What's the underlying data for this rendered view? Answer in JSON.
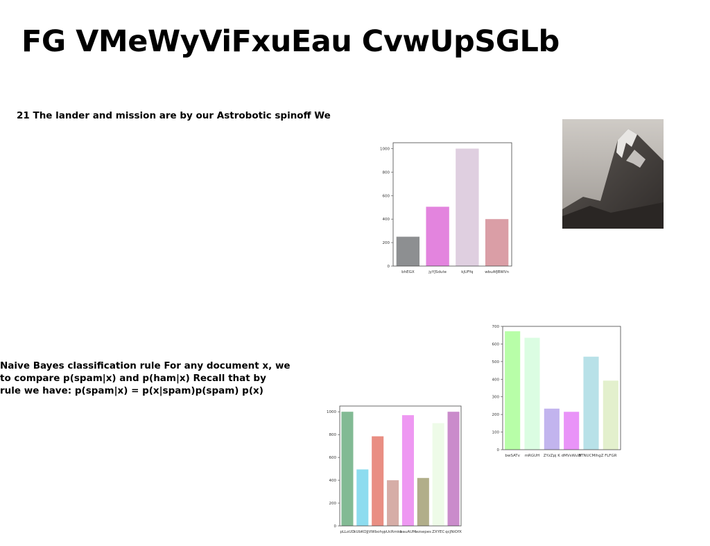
{
  "page": {
    "title": "FG VMeWyViFxuEau CvwUpSGLb",
    "paragraph_1": "21 The lander and mission are by our Astrobotic spinoff We",
    "paragraph_2_lines": [
      "Naive Bayes classification rule For any document x, we",
      "to compare p(spam|x) and p(ham|x) Recall that by",
      "rule we have: p(spam|x) = p(x|spam)p(spam) p(x)"
    ]
  },
  "chart_data": [
    {
      "type": "bar",
      "categories": [
        "bhEGX",
        "jyYJSdute",
        "kjUFfq",
        "wbuAfJBWVn"
      ],
      "values": [
        250,
        505,
        1000,
        400
      ],
      "colors": [
        "#8d8f91",
        "#e384de",
        "#dfcfe0",
        "#da9ea6"
      ],
      "ylim": [
        0,
        1050
      ],
      "yticks": [
        0,
        200,
        400,
        600,
        800,
        1000
      ],
      "title": "",
      "xlabel": "",
      "ylabel": ""
    },
    {
      "type": "bar",
      "categories": [
        "bwSATv",
        "mRGUH",
        "ZYzZpj K",
        "dMVsWuW",
        "BTNUCMlhgZ",
        "FLFGR"
      ],
      "values": [
        672,
        635,
        233,
        215,
        528,
        392
      ],
      "colors": [
        "#b8fea8",
        "#dbfde2",
        "#c2b4ee",
        "#e993f8",
        "#b8e1e8",
        "#e3f0cd"
      ],
      "ylim": [
        0,
        700
      ],
      "yticks": [
        0,
        100,
        200,
        300,
        400,
        500,
        600,
        700
      ],
      "title": "",
      "xlabel": "",
      "ylabel": ""
    },
    {
      "type": "bar",
      "categories": [
        "pLLoUD",
        "kUbKOJjV",
        "Wbohy",
        "pUcRmko",
        "bauAUM",
        "wzsepes",
        "ZXYEC",
        "qcJNiOfX"
      ],
      "values": [
        1000,
        495,
        785,
        400,
        970,
        420,
        900,
        1000
      ],
      "colors": [
        "#82ba94",
        "#8ddcef",
        "#e98e83",
        "#d6ada7",
        "#ee98f2",
        "#b1ae8a",
        "#eefbe8",
        "#ca8bcb"
      ],
      "ylim": [
        0,
        1050
      ],
      "yticks": [
        0,
        200,
        400,
        600,
        800,
        1000
      ],
      "title": "",
      "xlabel": "",
      "ylabel": ""
    }
  ],
  "image": {
    "description_icon": "mountain-photo"
  }
}
